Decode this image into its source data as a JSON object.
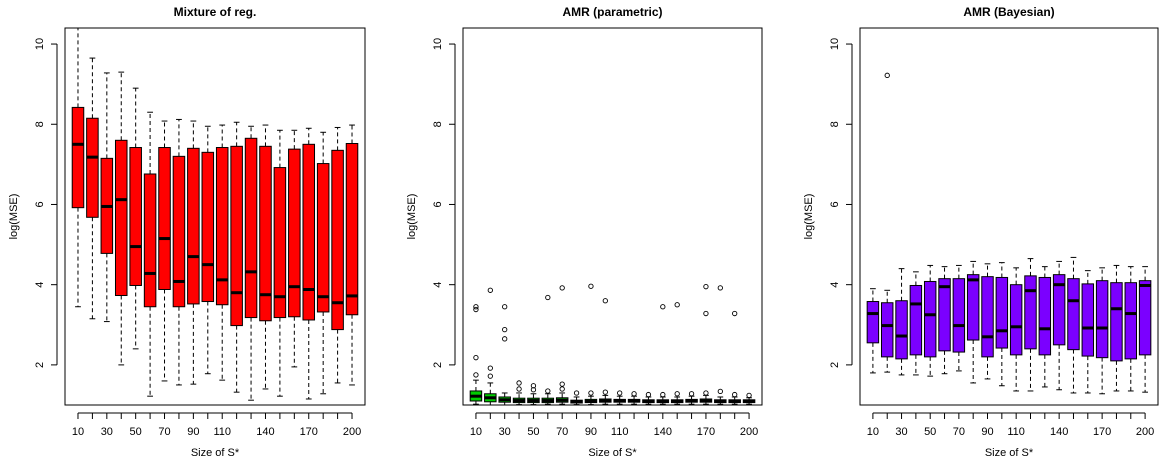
{
  "chart_data": [
    {
      "type": "boxplot",
      "title": "Mixture of reg.",
      "xlabel": "Size of S*",
      "ylabel": "log(MSE)",
      "ylim": [
        1.0,
        10.4
      ],
      "yticks": [
        2,
        4,
        6,
        8,
        10
      ],
      "categories": [
        "10",
        "20",
        "30",
        "40",
        "50",
        "60",
        "70",
        "80",
        "90",
        "100",
        "110",
        "120",
        "130",
        "140",
        "150",
        "160",
        "170",
        "180",
        "190",
        "200"
      ],
      "xtick_labels": [
        "10",
        "30",
        "50",
        "70",
        "90",
        "110",
        "140",
        "170",
        "200"
      ],
      "box_color": "#ff0000",
      "boxes": [
        {
          "lo": 3.45,
          "q1": 5.92,
          "med": 7.5,
          "q3": 8.42,
          "hi": 10.4
        },
        {
          "lo": 3.15,
          "q1": 5.68,
          "med": 7.18,
          "q3": 8.15,
          "hi": 9.65
        },
        {
          "lo": 3.08,
          "q1": 4.78,
          "med": 5.95,
          "q3": 7.15,
          "hi": 9.28
        },
        {
          "lo": 2.0,
          "q1": 3.73,
          "med": 6.12,
          "q3": 7.6,
          "hi": 9.3
        },
        {
          "lo": 2.4,
          "q1": 3.98,
          "med": 4.95,
          "q3": 7.42,
          "hi": 8.9
        },
        {
          "lo": 1.22,
          "q1": 3.45,
          "med": 4.28,
          "q3": 6.76,
          "hi": 8.3
        },
        {
          "lo": 1.6,
          "q1": 3.88,
          "med": 5.15,
          "q3": 7.42,
          "hi": 8.08
        },
        {
          "lo": 1.5,
          "q1": 3.45,
          "med": 4.08,
          "q3": 7.2,
          "hi": 8.12
        },
        {
          "lo": 1.52,
          "q1": 3.52,
          "med": 4.7,
          "q3": 7.4,
          "hi": 8.08
        },
        {
          "lo": 1.78,
          "q1": 3.58,
          "med": 4.5,
          "q3": 7.3,
          "hi": 7.95
        },
        {
          "lo": 1.62,
          "q1": 3.5,
          "med": 4.12,
          "q3": 7.42,
          "hi": 7.98
        },
        {
          "lo": 1.32,
          "q1": 2.98,
          "med": 3.8,
          "q3": 7.45,
          "hi": 8.05
        },
        {
          "lo": 1.12,
          "q1": 3.18,
          "med": 4.32,
          "q3": 7.65,
          "hi": 7.95
        },
        {
          "lo": 1.4,
          "q1": 3.1,
          "med": 3.75,
          "q3": 7.45,
          "hi": 7.98
        },
        {
          "lo": 1.22,
          "q1": 3.18,
          "med": 3.7,
          "q3": 6.92,
          "hi": 7.85
        },
        {
          "lo": 1.95,
          "q1": 3.2,
          "med": 3.95,
          "q3": 7.38,
          "hi": 7.85
        },
        {
          "lo": 1.15,
          "q1": 3.12,
          "med": 3.88,
          "q3": 7.5,
          "hi": 7.9
        },
        {
          "lo": 1.28,
          "q1": 3.32,
          "med": 3.7,
          "q3": 7.02,
          "hi": 7.8
        },
        {
          "lo": 1.55,
          "q1": 2.88,
          "med": 3.55,
          "q3": 7.35,
          "hi": 7.92
        },
        {
          "lo": 1.5,
          "q1": 3.25,
          "med": 3.72,
          "q3": 7.52,
          "hi": 7.98
        }
      ],
      "outliers": []
    },
    {
      "type": "boxplot",
      "title": "AMR (parametric)",
      "xlabel": "Size of S*",
      "ylabel": "log(MSE)",
      "ylim": [
        1.0,
        10.4
      ],
      "yticks": [
        2,
        4,
        6,
        8,
        10
      ],
      "categories": [
        "10",
        "20",
        "30",
        "40",
        "50",
        "60",
        "70",
        "80",
        "90",
        "100",
        "110",
        "120",
        "130",
        "140",
        "150",
        "160",
        "170",
        "180",
        "190",
        "200"
      ],
      "xtick_labels": [
        "10",
        "30",
        "50",
        "70",
        "90",
        "110",
        "140",
        "170",
        "200"
      ],
      "box_color": "#00cd00",
      "boxes": [
        {
          "lo": 1.02,
          "q1": 1.1,
          "med": 1.22,
          "q3": 1.35,
          "hi": 1.62
        },
        {
          "lo": 1.0,
          "q1": 1.08,
          "med": 1.18,
          "q3": 1.28,
          "hi": 1.55
        },
        {
          "lo": 1.0,
          "q1": 1.07,
          "med": 1.13,
          "q3": 1.2,
          "hi": 1.3
        },
        {
          "lo": 1.01,
          "q1": 1.06,
          "med": 1.11,
          "q3": 1.17,
          "hi": 1.3
        },
        {
          "lo": 1.01,
          "q1": 1.06,
          "med": 1.11,
          "q3": 1.17,
          "hi": 1.28
        },
        {
          "lo": 1.02,
          "q1": 1.06,
          "med": 1.11,
          "q3": 1.17,
          "hi": 1.28
        },
        {
          "lo": 1.02,
          "q1": 1.07,
          "med": 1.12,
          "q3": 1.18,
          "hi": 1.3
        },
        {
          "lo": 1.01,
          "q1": 1.05,
          "med": 1.08,
          "q3": 1.12,
          "hi": 1.2
        },
        {
          "lo": 1.01,
          "q1": 1.06,
          "med": 1.09,
          "q3": 1.14,
          "hi": 1.22
        },
        {
          "lo": 1.02,
          "q1": 1.07,
          "med": 1.1,
          "q3": 1.15,
          "hi": 1.24
        },
        {
          "lo": 1.02,
          "q1": 1.07,
          "med": 1.1,
          "q3": 1.14,
          "hi": 1.22
        },
        {
          "lo": 1.02,
          "q1": 1.07,
          "med": 1.1,
          "q3": 1.14,
          "hi": 1.22
        },
        {
          "lo": 1.02,
          "q1": 1.06,
          "med": 1.09,
          "q3": 1.13,
          "hi": 1.2
        },
        {
          "lo": 1.02,
          "q1": 1.06,
          "med": 1.09,
          "q3": 1.13,
          "hi": 1.2
        },
        {
          "lo": 1.02,
          "q1": 1.06,
          "med": 1.09,
          "q3": 1.13,
          "hi": 1.2
        },
        {
          "lo": 1.02,
          "q1": 1.07,
          "med": 1.1,
          "q3": 1.14,
          "hi": 1.22
        },
        {
          "lo": 1.02,
          "q1": 1.07,
          "med": 1.1,
          "q3": 1.15,
          "hi": 1.24
        },
        {
          "lo": 1.02,
          "q1": 1.06,
          "med": 1.09,
          "q3": 1.13,
          "hi": 1.2
        },
        {
          "lo": 1.02,
          "q1": 1.06,
          "med": 1.09,
          "q3": 1.13,
          "hi": 1.2
        },
        {
          "lo": 1.02,
          "q1": 1.06,
          "med": 1.09,
          "q3": 1.13,
          "hi": 1.18
        }
      ],
      "outliers": [
        {
          "i": 0,
          "y": 3.45
        },
        {
          "i": 0,
          "y": 3.38
        },
        {
          "i": 0,
          "y": 2.18
        },
        {
          "i": 0,
          "y": 1.75
        },
        {
          "i": 1,
          "y": 3.86
        },
        {
          "i": 1,
          "y": 1.92
        },
        {
          "i": 1,
          "y": 1.72
        },
        {
          "i": 2,
          "y": 3.45
        },
        {
          "i": 2,
          "y": 2.88
        },
        {
          "i": 2,
          "y": 2.65
        },
        {
          "i": 3,
          "y": 1.55
        },
        {
          "i": 3,
          "y": 1.4
        },
        {
          "i": 4,
          "y": 1.48
        },
        {
          "i": 4,
          "y": 1.38
        },
        {
          "i": 5,
          "y": 3.68
        },
        {
          "i": 5,
          "y": 1.35
        },
        {
          "i": 6,
          "y": 3.92
        },
        {
          "i": 6,
          "y": 1.52
        },
        {
          "i": 6,
          "y": 1.4
        },
        {
          "i": 7,
          "y": 1.3
        },
        {
          "i": 8,
          "y": 3.96
        },
        {
          "i": 8,
          "y": 1.3
        },
        {
          "i": 9,
          "y": 3.6
        },
        {
          "i": 9,
          "y": 1.32
        },
        {
          "i": 10,
          "y": 1.3
        },
        {
          "i": 11,
          "y": 1.28
        },
        {
          "i": 12,
          "y": 1.26
        },
        {
          "i": 13,
          "y": 3.45
        },
        {
          "i": 13,
          "y": 1.26
        },
        {
          "i": 14,
          "y": 3.5
        },
        {
          "i": 14,
          "y": 1.28
        },
        {
          "i": 15,
          "y": 1.28
        },
        {
          "i": 16,
          "y": 3.95
        },
        {
          "i": 16,
          "y": 3.28
        },
        {
          "i": 16,
          "y": 1.3
        },
        {
          "i": 17,
          "y": 3.92
        },
        {
          "i": 17,
          "y": 1.34
        },
        {
          "i": 18,
          "y": 3.28
        },
        {
          "i": 18,
          "y": 1.26
        },
        {
          "i": 19,
          "y": 1.24
        }
      ]
    },
    {
      "type": "boxplot",
      "title": "AMR (Bayesian)",
      "xlabel": "Size of S*",
      "ylabel": "log(MSE)",
      "ylim": [
        1.0,
        10.4
      ],
      "yticks": [
        2,
        4,
        6,
        8,
        10
      ],
      "categories": [
        "10",
        "20",
        "30",
        "40",
        "50",
        "60",
        "70",
        "80",
        "90",
        "100",
        "110",
        "120",
        "130",
        "140",
        "150",
        "160",
        "170",
        "180",
        "190",
        "200"
      ],
      "xtick_labels": [
        "10",
        "30",
        "50",
        "70",
        "90",
        "110",
        "140",
        "170",
        "200"
      ],
      "box_color": "#7b00ff",
      "boxes": [
        {
          "lo": 1.8,
          "q1": 2.55,
          "med": 3.28,
          "q3": 3.58,
          "hi": 3.9
        },
        {
          "lo": 1.82,
          "q1": 2.2,
          "med": 2.98,
          "q3": 3.55,
          "hi": 3.86
        },
        {
          "lo": 1.75,
          "q1": 2.15,
          "med": 2.72,
          "q3": 3.6,
          "hi": 4.4
        },
        {
          "lo": 1.75,
          "q1": 2.25,
          "med": 3.52,
          "q3": 3.98,
          "hi": 4.32
        },
        {
          "lo": 1.72,
          "q1": 2.2,
          "med": 3.25,
          "q3": 4.08,
          "hi": 4.48
        },
        {
          "lo": 1.78,
          "q1": 2.35,
          "med": 3.95,
          "q3": 4.15,
          "hi": 4.45
        },
        {
          "lo": 1.85,
          "q1": 2.32,
          "med": 2.98,
          "q3": 4.15,
          "hi": 4.48
        },
        {
          "lo": 1.55,
          "q1": 2.62,
          "med": 4.12,
          "q3": 4.25,
          "hi": 4.58
        },
        {
          "lo": 1.65,
          "q1": 2.2,
          "med": 2.7,
          "q3": 4.2,
          "hi": 4.52
        },
        {
          "lo": 1.48,
          "q1": 2.42,
          "med": 2.85,
          "q3": 4.18,
          "hi": 4.55
        },
        {
          "lo": 1.35,
          "q1": 2.25,
          "med": 2.95,
          "q3": 4.0,
          "hi": 4.42
        },
        {
          "lo": 1.35,
          "q1": 2.4,
          "med": 3.85,
          "q3": 4.22,
          "hi": 4.65
        },
        {
          "lo": 1.45,
          "q1": 2.25,
          "med": 2.9,
          "q3": 4.18,
          "hi": 4.45
        },
        {
          "lo": 1.38,
          "q1": 2.5,
          "med": 4.0,
          "q3": 4.25,
          "hi": 4.58
        },
        {
          "lo": 1.3,
          "q1": 2.38,
          "med": 3.6,
          "q3": 4.15,
          "hi": 4.68
        },
        {
          "lo": 1.3,
          "q1": 2.22,
          "med": 2.92,
          "q3": 4.02,
          "hi": 4.35
        },
        {
          "lo": 1.28,
          "q1": 2.18,
          "med": 2.92,
          "q3": 4.1,
          "hi": 4.42
        },
        {
          "lo": 1.35,
          "q1": 2.1,
          "med": 3.4,
          "q3": 4.05,
          "hi": 4.48
        },
        {
          "lo": 1.35,
          "q1": 2.15,
          "med": 3.28,
          "q3": 4.05,
          "hi": 4.45
        },
        {
          "lo": 1.32,
          "q1": 2.25,
          "med": 3.98,
          "q3": 4.1,
          "hi": 4.45
        }
      ],
      "outliers": [
        {
          "i": 1,
          "y": 9.22
        }
      ]
    }
  ]
}
